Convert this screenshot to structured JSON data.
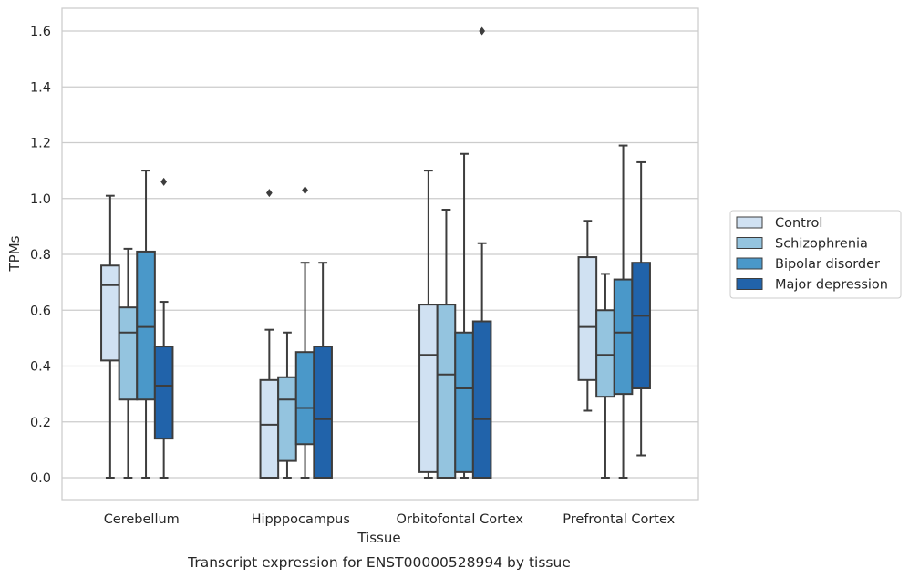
{
  "chart_data": {
    "type": "box",
    "title": "",
    "xlabel": "Tissue",
    "ylabel": "TPMs",
    "caption": "Transcript expression for ENST00000528994 by tissue",
    "ylim": [
      -0.08,
      1.68
    ],
    "yticks": [
      "0.0",
      "0.2",
      "0.4",
      "0.6",
      "0.8",
      "1.0",
      "1.2",
      "1.4",
      "1.6"
    ],
    "ytick_values": [
      0.0,
      0.2,
      0.4,
      0.6,
      0.8,
      1.0,
      1.2,
      1.4,
      1.6
    ],
    "grid": "horizontal",
    "legend_placement": "right",
    "categories": [
      "Cerebellum",
      "Hipppocampus",
      "Orbitofontal Cortex",
      "Prefrontal Cortex"
    ],
    "series": [
      {
        "name": "Control",
        "color": "#d0e1f2",
        "boxes": [
          {
            "whislo": 0.0,
            "q1": 0.42,
            "med": 0.69,
            "q3": 0.76,
            "whishi": 1.01,
            "fliers": []
          },
          {
            "whislo": 0.0,
            "q1": 0.0,
            "med": 0.19,
            "q3": 0.35,
            "whishi": 0.53,
            "fliers": [
              1.02
            ]
          },
          {
            "whislo": 0.0,
            "q1": 0.02,
            "med": 0.44,
            "q3": 0.62,
            "whishi": 1.1,
            "fliers": []
          },
          {
            "whislo": 0.24,
            "q1": 0.35,
            "med": 0.54,
            "q3": 0.79,
            "whishi": 0.92,
            "fliers": []
          }
        ]
      },
      {
        "name": "Schizophrenia",
        "color": "#94c4df",
        "boxes": [
          {
            "whislo": 0.0,
            "q1": 0.28,
            "med": 0.52,
            "q3": 0.61,
            "whishi": 0.82,
            "fliers": []
          },
          {
            "whislo": 0.0,
            "q1": 0.06,
            "med": 0.28,
            "q3": 0.36,
            "whishi": 0.52,
            "fliers": []
          },
          {
            "whislo": 0.0,
            "q1": 0.0,
            "med": 0.37,
            "q3": 0.62,
            "whishi": 0.96,
            "fliers": []
          },
          {
            "whislo": 0.0,
            "q1": 0.29,
            "med": 0.44,
            "q3": 0.6,
            "whishi": 0.73,
            "fliers": []
          }
        ]
      },
      {
        "name": "Bipolar disorder",
        "color": "#4a98c9",
        "boxes": [
          {
            "whislo": 0.0,
            "q1": 0.28,
            "med": 0.54,
            "q3": 0.81,
            "whishi": 1.1,
            "fliers": []
          },
          {
            "whislo": 0.0,
            "q1": 0.12,
            "med": 0.25,
            "q3": 0.45,
            "whishi": 0.77,
            "fliers": [
              1.03
            ]
          },
          {
            "whislo": 0.0,
            "q1": 0.02,
            "med": 0.32,
            "q3": 0.52,
            "whishi": 1.16,
            "fliers": []
          },
          {
            "whislo": 0.0,
            "q1": 0.3,
            "med": 0.52,
            "q3": 0.71,
            "whishi": 1.19,
            "fliers": []
          }
        ]
      },
      {
        "name": "Major depression",
        "color": "#2163aa",
        "boxes": [
          {
            "whislo": 0.0,
            "q1": 0.14,
            "med": 0.33,
            "q3": 0.47,
            "whishi": 0.63,
            "fliers": [
              1.06
            ]
          },
          {
            "whislo": 0.0,
            "q1": 0.0,
            "med": 0.21,
            "q3": 0.47,
            "whishi": 0.77,
            "fliers": []
          },
          {
            "whislo": 0.0,
            "q1": 0.0,
            "med": 0.21,
            "q3": 0.56,
            "whishi": 0.84,
            "fliers": [
              1.6
            ]
          },
          {
            "whislo": 0.08,
            "q1": 0.32,
            "med": 0.58,
            "q3": 0.77,
            "whishi": 1.13,
            "fliers": []
          }
        ]
      }
    ]
  }
}
